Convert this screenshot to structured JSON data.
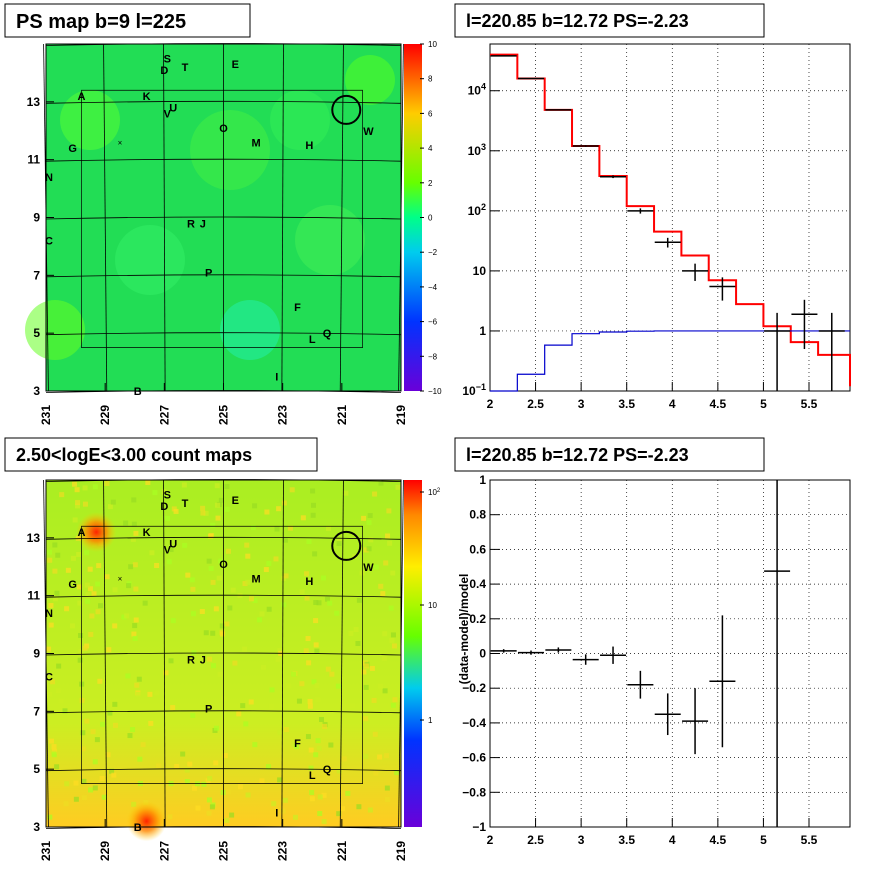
{
  "panels": {
    "ps_map": {
      "title": "PS map b=9 l=225"
    },
    "spectrum": {
      "title": "l=220.85 b=12.72 PS=-2.23"
    },
    "count_map": {
      "title": "2.50<logE<3.00 count maps"
    },
    "residual": {
      "title": "l=220.85 b=12.72 PS=-2.23"
    }
  },
  "colors": {
    "data": "#000000",
    "model": "#ff0000",
    "background": "#0000cc"
  },
  "chart_data": [
    {
      "type": "heatmap",
      "title": "PS map b=9 l=225",
      "x_ticks": [
        "231",
        "229",
        "227",
        "225",
        "223",
        "221",
        "219"
      ],
      "y_ticks": [
        "3",
        "5",
        "7",
        "9",
        "11",
        "13"
      ],
      "xlim": [
        231,
        219
      ],
      "ylim": [
        3,
        15
      ],
      "colorbar": {
        "min": -10,
        "max": 10,
        "ticks": [
          "10",
          "8",
          "6",
          "4",
          "2",
          "0",
          "−2",
          "−4",
          "−6",
          "−8",
          "−10"
        ]
      },
      "sources": [
        {
          "label": "S",
          "l": 226.9,
          "b": 14.5
        },
        {
          "label": "D",
          "l": 227.0,
          "b": 14.1
        },
        {
          "label": "T",
          "l": 226.3,
          "b": 14.2
        },
        {
          "label": "E",
          "l": 224.6,
          "b": 14.3
        },
        {
          "label": "A",
          "l": 229.8,
          "b": 13.2
        },
        {
          "label": "K",
          "l": 227.6,
          "b": 13.2
        },
        {
          "label": "U",
          "l": 226.7,
          "b": 12.8
        },
        {
          "label": "V",
          "l": 226.9,
          "b": 12.6
        },
        {
          "label": "O",
          "l": 225.0,
          "b": 12.1
        },
        {
          "label": "W",
          "l": 220.1,
          "b": 12.0
        },
        {
          "label": "M",
          "l": 223.9,
          "b": 11.6
        },
        {
          "label": "H",
          "l": 222.1,
          "b": 11.5
        },
        {
          "label": "G",
          "l": 230.1,
          "b": 11.4
        },
        {
          "label": "N",
          "l": 230.9,
          "b": 10.4
        },
        {
          "label": "R",
          "l": 226.1,
          "b": 8.8
        },
        {
          "label": "J",
          "l": 225.7,
          "b": 8.8
        },
        {
          "label": "C",
          "l": 230.9,
          "b": 8.2
        },
        {
          "label": "P",
          "l": 225.5,
          "b": 7.1
        },
        {
          "label": "F",
          "l": 222.5,
          "b": 5.9
        },
        {
          "label": "Q",
          "l": 221.5,
          "b": 5.0
        },
        {
          "label": "L",
          "l": 222.0,
          "b": 4.8
        },
        {
          "label": "I",
          "l": 223.2,
          "b": 3.5
        },
        {
          "label": "B",
          "l": 227.9,
          "b": 3.0
        }
      ],
      "marker": {
        "l": 220.85,
        "b": 12.72
      }
    },
    {
      "type": "line",
      "title": "l=220.85 b=12.72 PS=-2.23",
      "x_ticks": [
        "2",
        "2.5",
        "3",
        "3.5",
        "4",
        "4.5",
        "5",
        "5.5"
      ],
      "y_ticks": [
        "10^-1",
        "1",
        "10",
        "10^2",
        "10^3",
        "10^4"
      ],
      "xlim": [
        2,
        5.95
      ],
      "ylim": [
        0.1,
        60000
      ],
      "y_scale": "log",
      "series": [
        {
          "role": "data",
          "x": [
            2.15,
            2.45,
            2.75,
            3.05,
            3.35,
            3.65,
            3.95,
            4.25,
            4.55,
            4.85,
            5.15,
            5.45,
            5.75
          ],
          "y": [
            38000,
            16000,
            4800,
            1200,
            370,
            100,
            30,
            10,
            5.5,
            0,
            1,
            1.9,
            1
          ],
          "yerr": [
            200,
            120,
            70,
            35,
            19,
            10,
            5.5,
            3.2,
            2.3,
            0,
            1,
            1.4,
            1
          ]
        },
        {
          "role": "model",
          "edges": [
            2.0,
            2.3,
            2.6,
            2.9,
            3.2,
            3.5,
            3.8,
            4.1,
            4.4,
            4.7,
            5.0,
            5.3,
            5.6,
            5.95
          ],
          "y": [
            40000,
            16000,
            4800,
            1200,
            380,
            120,
            45,
            18,
            7,
            2.8,
            1.2,
            0.65,
            0.4,
            0.12
          ]
        },
        {
          "role": "background",
          "edges": [
            2.0,
            2.3,
            2.6,
            2.9,
            3.2,
            3.5,
            3.8,
            4.1,
            4.4,
            4.7,
            5.0,
            5.3,
            5.6,
            5.95
          ],
          "y": [
            0.02,
            0.19,
            0.58,
            0.9,
            0.96,
            0.99,
            1.0,
            1.0,
            1.0,
            1.0,
            1.0,
            1.0,
            1.0,
            1.0
          ]
        }
      ]
    },
    {
      "type": "heatmap",
      "title": "2.50<logE<3.00 count maps",
      "x_ticks": [
        "231",
        "229",
        "227",
        "225",
        "223",
        "221",
        "219"
      ],
      "y_ticks": [
        "3",
        "5",
        "7",
        "9",
        "11",
        "13"
      ],
      "xlim": [
        231,
        219
      ],
      "ylim": [
        3,
        15
      ],
      "colorbar": {
        "scale": "log",
        "ticks": [
          "10^2",
          "10",
          "1"
        ]
      },
      "hotspots": [
        {
          "l": 229.3,
          "b": 13.2
        },
        {
          "l": 227.6,
          "b": 3.2
        }
      ]
    },
    {
      "type": "scatter",
      "title": "l=220.85 b=12.72 PS=-2.23",
      "ylabel": "(data-model)/model",
      "x_ticks": [
        "2",
        "2.5",
        "3",
        "3.5",
        "4",
        "4.5",
        "5",
        "5.5"
      ],
      "y_ticks": [
        "1",
        "0.8",
        "0.6",
        "0.4",
        "0.2",
        "0",
        "−0.2",
        "−0.4",
        "−0.6",
        "−0.8",
        "−1"
      ],
      "xlim": [
        2,
        5.95
      ],
      "ylim": [
        -1,
        1
      ],
      "points": [
        {
          "x": 2.15,
          "y": 0.015,
          "yerr": 0.01
        },
        {
          "x": 2.45,
          "y": 0.005,
          "yerr": 0.012
        },
        {
          "x": 2.75,
          "y": 0.02,
          "yerr": 0.015
        },
        {
          "x": 3.05,
          "y": -0.035,
          "yerr": 0.03
        },
        {
          "x": 3.35,
          "y": -0.01,
          "yerr": 0.05
        },
        {
          "x": 3.65,
          "y": -0.18,
          "yerr": 0.08
        },
        {
          "x": 3.95,
          "y": -0.35,
          "yerr": 0.12
        },
        {
          "x": 4.25,
          "y": -0.39,
          "yerr": 0.19
        },
        {
          "x": 4.55,
          "y": -0.16,
          "yerr": 0.38
        },
        {
          "x": 5.15,
          "y": 0.475,
          "yerr": 1.6
        }
      ]
    }
  ]
}
